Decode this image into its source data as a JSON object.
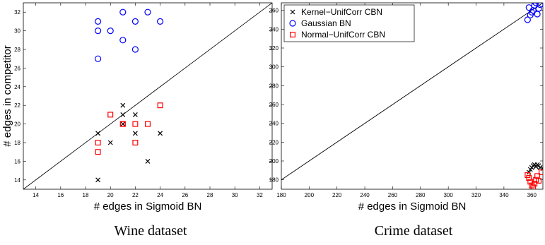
{
  "chart_data": [
    {
      "type": "scatter",
      "title": "",
      "caption": "Wine dataset",
      "xlabel": "# edges in Sigmoid BN",
      "ylabel": "# edges in competitor",
      "xlim": [
        13,
        33
      ],
      "ylim": [
        13,
        33
      ],
      "xticks": [
        14,
        16,
        18,
        20,
        22,
        24,
        26,
        28,
        30,
        32
      ],
      "yticks": [
        14,
        16,
        18,
        20,
        22,
        24,
        26,
        28,
        30,
        32
      ],
      "diagonal": true,
      "grid": false,
      "legend": null,
      "series": [
        {
          "marker": "x",
          "color": "#000000",
          "points": [
            [
              19,
              14
            ],
            [
              19,
              19
            ],
            [
              20,
              18
            ],
            [
              21,
              22
            ],
            [
              21,
              21
            ],
            [
              21,
              20
            ],
            [
              22,
              21
            ],
            [
              22,
              19
            ],
            [
              23,
              16
            ],
            [
              24,
              19
            ]
          ]
        },
        {
          "marker": "o",
          "color": "#0000ff",
          "points": [
            [
              19,
              31
            ],
            [
              19,
              30
            ],
            [
              19,
              27
            ],
            [
              20,
              30
            ],
            [
              21,
              32
            ],
            [
              21,
              29
            ],
            [
              22,
              31
            ],
            [
              22,
              28
            ],
            [
              23,
              32
            ],
            [
              24,
              31
            ]
          ]
        },
        {
          "marker": "s",
          "color": "#ff0000",
          "points": [
            [
              19,
              18
            ],
            [
              19,
              17
            ],
            [
              20,
              21
            ],
            [
              21,
              20
            ],
            [
              21,
              20
            ],
            [
              22,
              20
            ],
            [
              22,
              18
            ],
            [
              23,
              20
            ],
            [
              24,
              22
            ]
          ]
        }
      ]
    },
    {
      "type": "scatter",
      "title": "",
      "caption": "Crime dataset",
      "xlabel": "# edges in Sigmoid BN",
      "ylabel": "",
      "xlim": [
        180,
        368
      ],
      "ylim": [
        170,
        368
      ],
      "xticks": [
        180,
        200,
        220,
        240,
        260,
        280,
        300,
        320,
        340,
        360
      ],
      "yticks": [
        180,
        200,
        220,
        240,
        260,
        280,
        300,
        320,
        340,
        360
      ],
      "diagonal": true,
      "grid": false,
      "legend": "top-left",
      "series": [
        {
          "name": "Kernel−UnifCorr CBN",
          "marker": "x",
          "color": "#000000",
          "points": [
            [
              358,
              188
            ],
            [
              360,
              193
            ],
            [
              361,
              195
            ],
            [
              362,
              196
            ],
            [
              363,
              194
            ],
            [
              364,
              196
            ],
            [
              365,
              195
            ],
            [
              366,
              193
            ],
            [
              368,
              192
            ],
            [
              359,
              191
            ]
          ]
        },
        {
          "name": "Gaussian BN",
          "marker": "o",
          "color": "#0000ff",
          "points": [
            [
              357,
              350
            ],
            [
              358,
              363
            ],
            [
              359,
              355
            ],
            [
              360,
              358
            ],
            [
              361,
              360
            ],
            [
              362,
              365
            ],
            [
              363,
              368
            ],
            [
              364,
              356
            ],
            [
              365,
              362
            ],
            [
              366,
              366
            ]
          ]
        },
        {
          "name": "Normal−UnifCorr CBN",
          "marker": "s",
          "color": "#ff0000",
          "points": [
            [
              357,
              185
            ],
            [
              358,
              182
            ],
            [
              359,
              178
            ],
            [
              360,
              174
            ],
            [
              361,
              172
            ],
            [
              362,
              176
            ],
            [
              363,
              180
            ],
            [
              364,
              184
            ],
            [
              365,
              179
            ],
            [
              367,
              188
            ]
          ]
        }
      ]
    }
  ]
}
